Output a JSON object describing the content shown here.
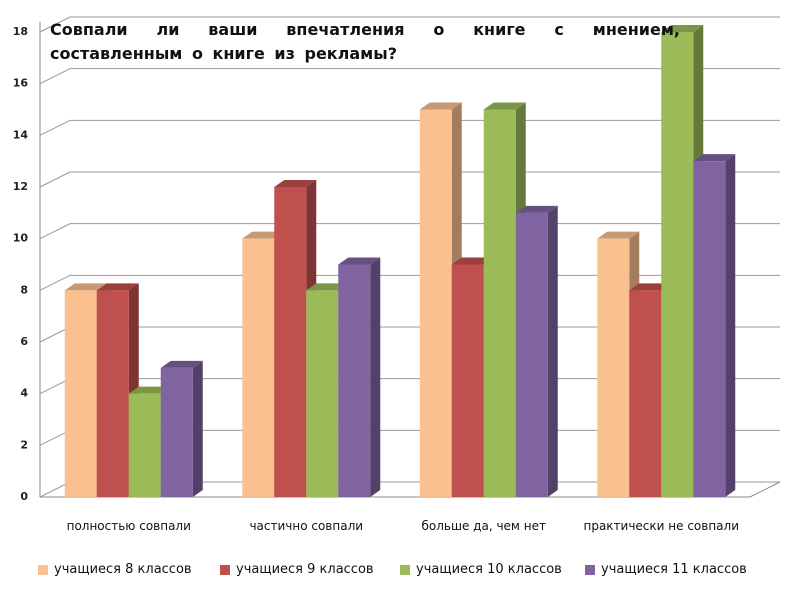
{
  "chart_data": {
    "type": "bar3d",
    "title": "Совпали ли ваши впечатления о книге с мнением, составленным о книге из рекламы?",
    "categories": [
      "полностью совпали",
      "частично совпали",
      "больше да, чем нет",
      "практически не совпали"
    ],
    "series": [
      {
        "name": "учащиеся 8 классов",
        "color": "#fac090",
        "values": [
          8,
          10,
          15,
          10
        ]
      },
      {
        "name": "учащиеся 9 классов",
        "color": "#c0504d",
        "values": [
          8,
          12,
          9,
          8
        ]
      },
      {
        "name": "учащиеся 10 классов",
        "color": "#9bbb59",
        "values": [
          4,
          8,
          15,
          18
        ]
      },
      {
        "name": "учащиеся 11 классов",
        "color": "#8064a2",
        "values": [
          5,
          9,
          11,
          13
        ]
      }
    ],
    "ylim": [
      0,
      18
    ],
    "yticks": [
      0,
      2,
      4,
      6,
      8,
      10,
      12,
      14,
      16,
      18
    ],
    "grid": true,
    "legend": "bottom"
  }
}
